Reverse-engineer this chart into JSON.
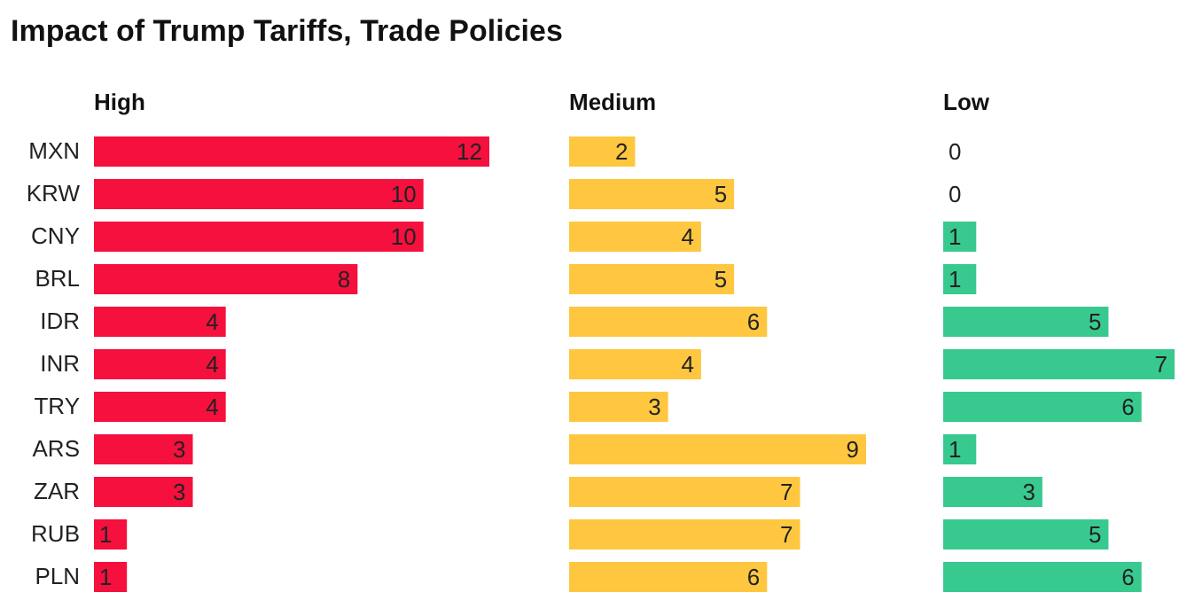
{
  "chart_data": [
    {
      "type": "bar",
      "orientation": "horizontal",
      "title": "Impact of Trump Tariffs, Trade Policies",
      "subtitle": "High",
      "categories": [
        "MXN",
        "KRW",
        "CNY",
        "BRL",
        "IDR",
        "INR",
        "TRY",
        "ARS",
        "ZAR",
        "RUB",
        "PLN"
      ],
      "values": [
        12,
        10,
        10,
        8,
        4,
        4,
        4,
        3,
        3,
        1,
        1
      ],
      "color": "#f5103e",
      "data_labels": true,
      "tick_labels": "y"
    },
    {
      "type": "bar",
      "orientation": "horizontal",
      "title": "Medium",
      "categories": [
        null,
        null,
        null,
        null,
        null,
        null,
        null,
        null,
        null,
        null,
        null
      ],
      "values": [
        2,
        5,
        4,
        5,
        6,
        4,
        3,
        9,
        7,
        7,
        6
      ],
      "color": "#fec73f",
      "data_labels": true,
      "tick_labels": "y"
    },
    {
      "type": "bar",
      "orientation": "horizontal",
      "title": "Low",
      "categories": [
        null,
        null,
        null,
        null,
        null,
        null,
        null,
        null,
        null,
        null,
        null
      ],
      "values": [
        0,
        0,
        1,
        1,
        5,
        7,
        6,
        1,
        3,
        5,
        6
      ],
      "color": "#38c98f",
      "data_labels": true,
      "tick_labels": "y"
    }
  ]
}
